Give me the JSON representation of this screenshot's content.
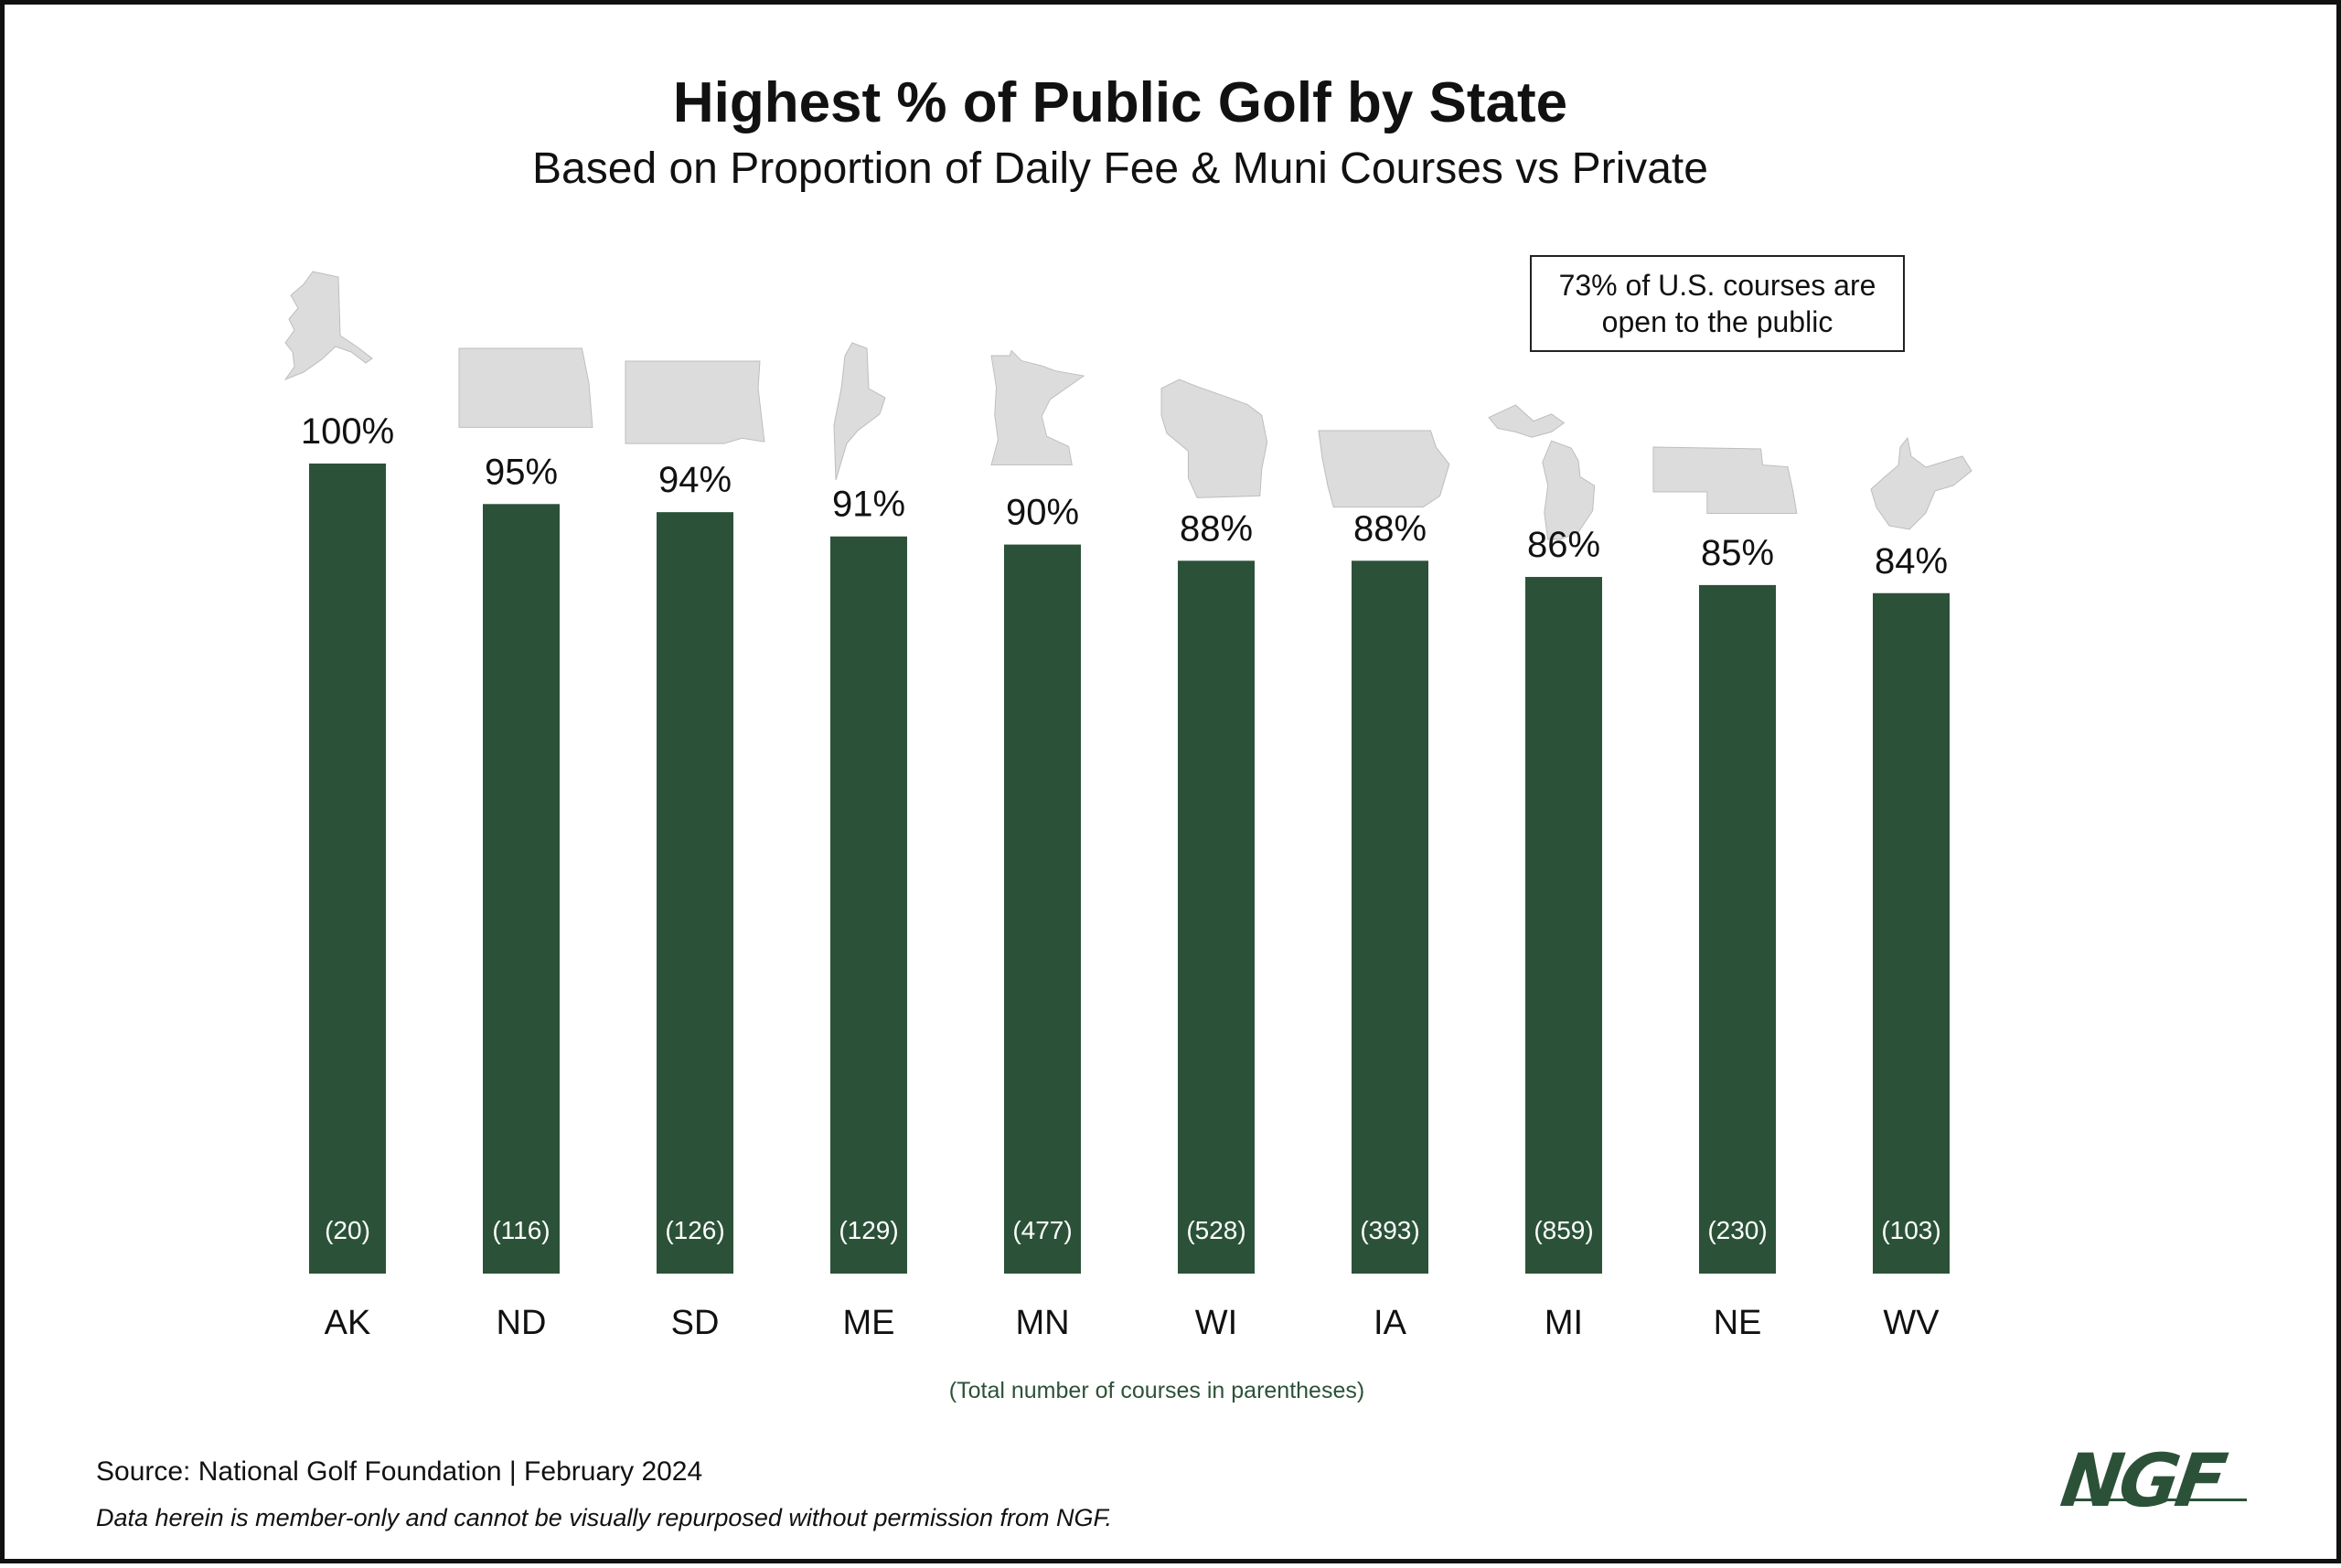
{
  "title": "Highest % of Public Golf by State",
  "subtitle": "Based on Proportion of Daily Fee & Muni Courses vs Private",
  "callout": "73% of U.S. courses are open to the public",
  "note": "(Total number of courses in parentheses)",
  "source": "Source: National Golf Foundation | February 2024",
  "disclaimer": "Data herein is member-only and cannot be visually repurposed without permission from NGF.",
  "logo_text": "NGF",
  "colors": {
    "bar": "#2b5238",
    "state_shape": "#dcdcdc",
    "note": "#2b5238"
  },
  "chart_data": {
    "type": "bar",
    "categories": [
      "AK",
      "ND",
      "SD",
      "ME",
      "MN",
      "WI",
      "IA",
      "MI",
      "NE",
      "WV"
    ],
    "values": [
      100,
      95,
      94,
      91,
      90,
      88,
      88,
      86,
      85,
      84
    ],
    "value_labels": [
      "100%",
      "95%",
      "94%",
      "91%",
      "90%",
      "88%",
      "88%",
      "86%",
      "85%",
      "84%"
    ],
    "course_counts": [
      "(20)",
      "(116)",
      "(126)",
      "(129)",
      "(477)",
      "(528)",
      "(393)",
      "(859)",
      "(230)",
      "(103)"
    ],
    "state_icons": [
      "alaska-shape",
      "north-dakota-shape",
      "south-dakota-shape",
      "maine-shape",
      "minnesota-shape",
      "wisconsin-shape",
      "iowa-shape",
      "michigan-shape",
      "nebraska-shape",
      "west-virginia-shape"
    ],
    "title": "Highest % of Public Golf by State",
    "xlabel": "",
    "ylabel": "",
    "ylim": [
      0,
      100
    ],
    "grid": false
  }
}
